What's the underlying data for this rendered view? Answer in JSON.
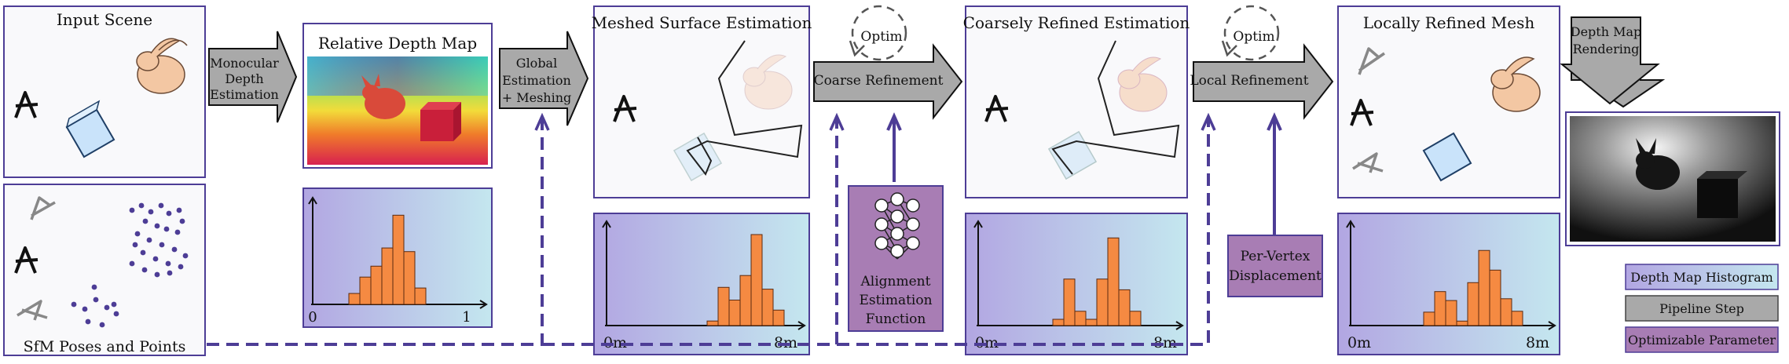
{
  "panels": {
    "input_scene": "Input Scene",
    "sfm": "SfM Poses and Points",
    "relative_depth": "Relative Depth Map",
    "meshed_surface": "Meshed Surface Estimation",
    "coarse": "Coarsely Refined Estimation",
    "local": "Locally Refined Mesh"
  },
  "steps": {
    "monocular": [
      "Monocular",
      "Depth",
      "Estimation"
    ],
    "global": [
      "Global",
      "Estimation",
      "+ Meshing"
    ],
    "coarse_refinement": "Coarse Refinement",
    "local_refinement": "Local Refinement",
    "depth_rendering": [
      "Depth Map",
      "Rendering"
    ]
  },
  "optim_label": "Optim",
  "params": {
    "alignment": [
      "Alignment",
      "Estimation",
      "Function"
    ],
    "per_vertex": [
      "Per-Vertex",
      "Displacement"
    ]
  },
  "axes": {
    "rel_min": "0",
    "rel_max": "1",
    "abs_min": "0m",
    "abs_max": "8m"
  },
  "histograms": {
    "relative": [
      0.12,
      0.3,
      0.42,
      0.62,
      0.98,
      0.58,
      0.18
    ],
    "meshed": [
      0.05,
      0.42,
      0.28,
      0.55,
      1.0,
      0.4,
      0.17
    ],
    "coarse": [
      0.07,
      0.52,
      0.16,
      0.07,
      0.52,
      0.98,
      0.4,
      0.16
    ],
    "local": [
      0.15,
      0.38,
      0.28,
      0.05,
      0.48,
      0.84,
      0.62,
      0.3,
      0.16
    ]
  },
  "legend": {
    "histogram": "Depth Map Histogram",
    "step": "Pipeline Step",
    "param": "Optimizable Parameter"
  },
  "colors": {
    "purple_dark": "#4d3d96",
    "orange": "#f58a42",
    "step_gray": "#a9a9a9",
    "param_purple": "#a87db4",
    "hist_left": "#b3a8e0",
    "hist_right": "#c3e6ee"
  }
}
